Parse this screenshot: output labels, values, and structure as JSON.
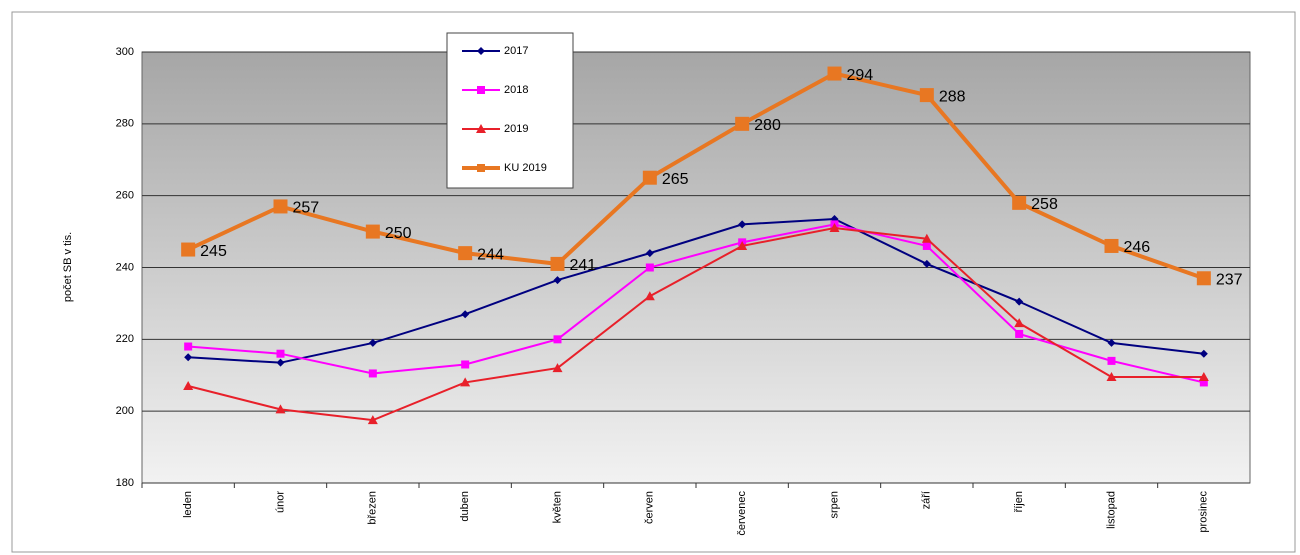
{
  "chart_data": {
    "type": "line",
    "y_label": "počet SB v tis.",
    "categories": [
      "leden",
      "únor",
      "březen",
      "duben",
      "květen",
      "červen",
      "červenec",
      "srpen",
      "září",
      "říjen",
      "listopad",
      "prosinec"
    ],
    "series": [
      {
        "name": "2017",
        "color": "#000080",
        "marker": "diamond",
        "values": [
          215,
          213.5,
          219,
          227,
          236.5,
          244,
          252,
          253.5,
          241,
          230.5,
          219,
          216
        ]
      },
      {
        "name": "2018",
        "color": "#ff00ff",
        "marker": "square",
        "values": [
          218,
          216,
          210.5,
          213,
          220,
          240,
          247,
          252,
          246,
          221.5,
          214,
          208
        ]
      },
      {
        "name": "2019",
        "color": "#e8202a",
        "marker": "triangle",
        "values": [
          207,
          200.5,
          197.5,
          208,
          212,
          232,
          246,
          251,
          248,
          224.5,
          209.5,
          209.5
        ]
      },
      {
        "name": "KU 2019",
        "color": "#e87722",
        "marker": "big-square",
        "data_labels": true,
        "values": [
          245,
          257,
          250,
          244,
          241,
          265,
          280,
          294,
          288,
          258,
          246,
          237
        ]
      }
    ],
    "ylim": [
      180,
      300
    ],
    "yticks": [
      180,
      200,
      220,
      240,
      260,
      280,
      300
    ],
    "grid": true
  }
}
